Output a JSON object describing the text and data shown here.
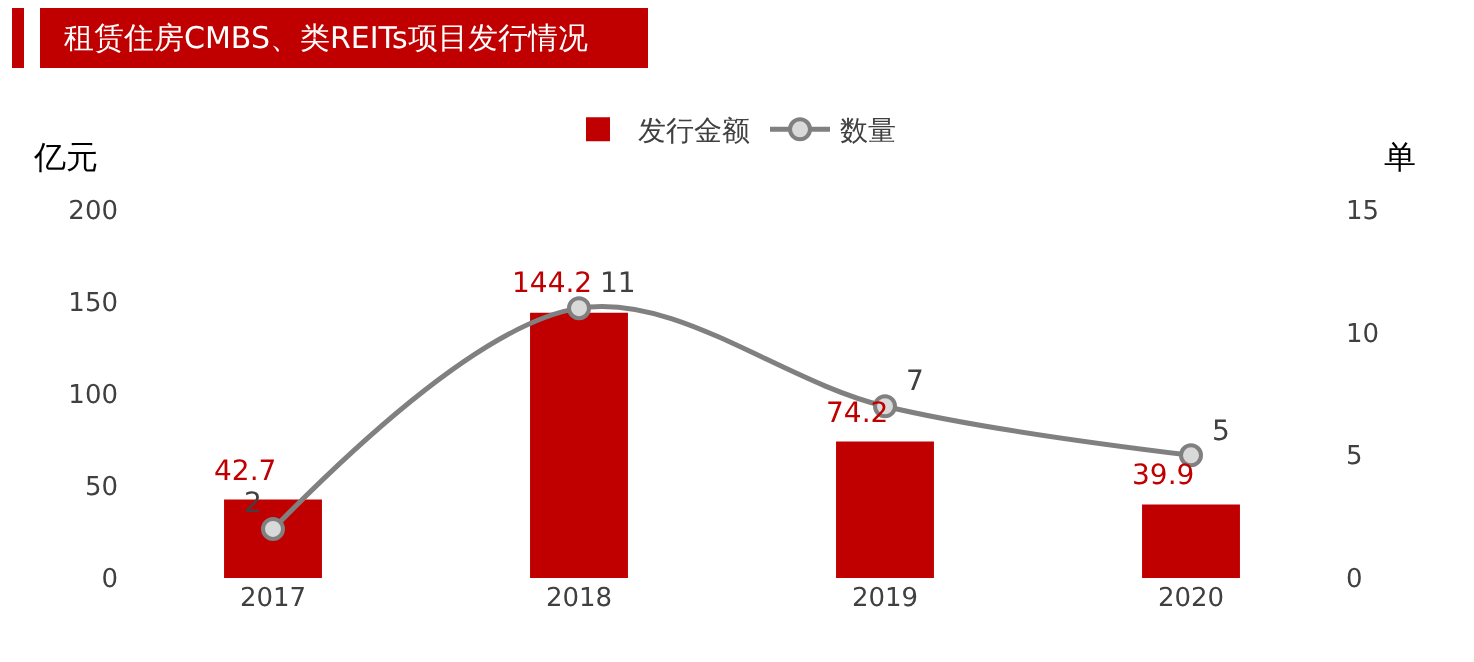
{
  "chart_data": {
    "type": "bar",
    "title": "租赁住房CMBS、类REITs项目发行情况",
    "categories": [
      "2017",
      "2018",
      "2019",
      "2020"
    ],
    "series": [
      {
        "name": "发行金额",
        "color": "#c00000",
        "values": [
          42.7,
          144.2,
          74.2,
          39.9
        ]
      },
      {
        "name": "数量",
        "type": "line",
        "axis": "y2",
        "color": "#808080",
        "values": [
          2,
          11,
          7,
          5
        ]
      }
    ],
    "ylabel": "亿元",
    "y2label": "单",
    "ylim": [
      0,
      200
    ],
    "yticks": [
      0,
      50,
      100,
      150,
      200
    ],
    "y2lim": [
      0,
      15
    ],
    "y2ticks": [
      0,
      5,
      10,
      15
    ],
    "data_labels": true,
    "legend": "top",
    "grid": false,
    "marker": "circle",
    "line_style": "solid"
  }
}
